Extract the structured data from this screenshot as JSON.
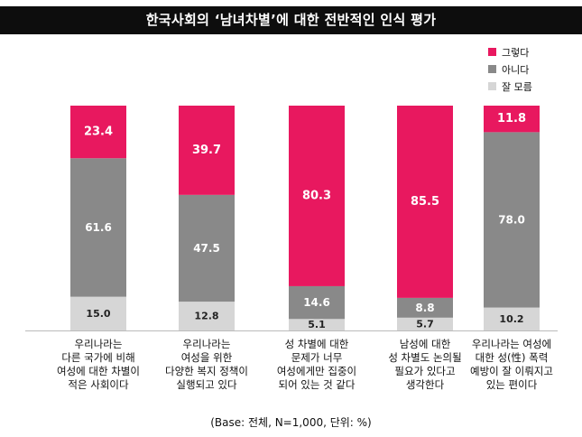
{
  "title": "한국사회의 ‘남녀차별’에 대한 전반적인 인식 평가",
  "footnote": "(Base: 전체, N=1,000, 단위: %)",
  "colors": {
    "yes": "#e8185f",
    "no": "#898989",
    "dontknow": "#d6d6d6"
  },
  "chart_data": {
    "type": "bar",
    "stacked": true,
    "orientation": "vertical",
    "legend_position": "top-right",
    "ylim": [
      0,
      100
    ],
    "categories": [
      "우리나라는\n다른 국가에 비해\n여성에 대한 차별이\n적은 사회이다",
      "우리나라는\n여성을 위한\n다양한 복지 정책이\n실행되고 있다",
      "성 차별에 대한\n문제가 너무\n여성에게만 집중이\n되어 있는 것 같다",
      "남성에 대한\n성 차별도 논의될\n필요가 있다고\n생각한다",
      "우리나라는 여성에\n대한 성(性) 폭력\n예방이 잘 이뤄지고\n있는 편이다"
    ],
    "series": [
      {
        "name": "잘 모름",
        "color": "#d6d6d6",
        "values": [
          15.0,
          12.8,
          5.1,
          5.7,
          10.2
        ],
        "labels": [
          "15.0",
          "12.8",
          "5.1",
          "5.7",
          "10.2"
        ]
      },
      {
        "name": "아니다",
        "color": "#898989",
        "values": [
          61.6,
          47.5,
          14.6,
          8.8,
          78.0
        ],
        "labels": [
          "61.6",
          "47.5",
          "14.6",
          "8.8",
          "78.0"
        ]
      },
      {
        "name": "그렇다",
        "color": "#e8185f",
        "values": [
          23.4,
          39.7,
          80.3,
          85.5,
          11.8
        ],
        "labels": [
          "23.4",
          "39.7",
          "80.3",
          "85.5",
          "11.8"
        ]
      }
    ],
    "legend_order": [
      "그렇다",
      "아니다",
      "잘 모름"
    ]
  }
}
